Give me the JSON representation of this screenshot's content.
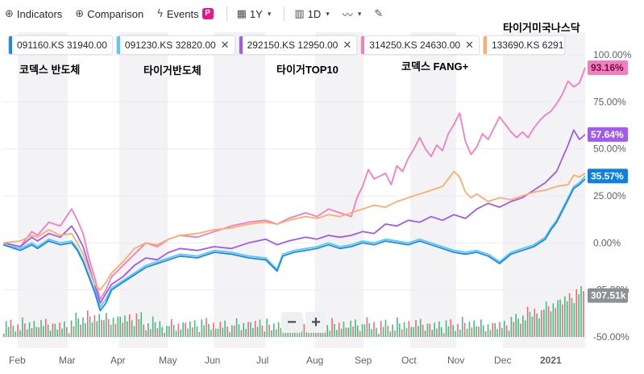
{
  "toolbar": {
    "indicators_label": "Indicators",
    "comparison_label": "Comparison",
    "events_label": "Events",
    "events_badge": "P",
    "range_label": "1Y",
    "interval_label": "1D"
  },
  "legend": [
    {
      "symbol_text": "091160.KS 31940.00",
      "color": "#1e88e5"
    },
    {
      "symbol_text": "091230.KS 32820.00",
      "color": "#5bc8f5"
    },
    {
      "symbol_text": "292150.KS 12950.00",
      "color": "#a259f0"
    },
    {
      "symbol_text": "314250.KS 24630.00",
      "color": "#f47cbf"
    },
    {
      "symbol_text": "133690.KS 6291",
      "color": "#f9ae6b"
    }
  ],
  "overlay_labels": [
    {
      "text": "코덱스 반도체"
    },
    {
      "text": "타이거반도체"
    },
    {
      "text": "타이거TOP10"
    },
    {
      "text": "코덱스 FANG+"
    },
    {
      "text": "타이거미국나스닥"
    }
  ],
  "chart_data": {
    "type": "line",
    "x_ticks": [
      "Feb",
      "Mar",
      "Apr",
      "May",
      "Jun",
      "Jul",
      "Aug",
      "Sep",
      "Oct",
      "Nov",
      "Dec",
      "2021"
    ],
    "y_ticks": [
      "100.00%",
      "75.00%",
      "50.00%",
      "25.00%",
      "0.00%",
      "-25.00%",
      "-50.00%"
    ],
    "ylim": [
      -50,
      100
    ],
    "y_unit": "%",
    "series": [
      {
        "name": "314250.KS",
        "color": "#f47cbf",
        "last_label": "93.16%",
        "values": [
          [
            0,
            0
          ],
          [
            3,
            -2
          ],
          [
            5,
            6
          ],
          [
            6,
            4
          ],
          [
            8,
            11
          ],
          [
            10,
            9
          ],
          [
            12,
            18
          ],
          [
            13,
            12
          ],
          [
            14,
            5
          ],
          [
            15,
            -8
          ],
          [
            16,
            -18
          ],
          [
            17,
            -30
          ],
          [
            18,
            -25
          ],
          [
            19,
            -18
          ],
          [
            21,
            -12
          ],
          [
            23,
            -6
          ],
          [
            25,
            0
          ],
          [
            27,
            -2
          ],
          [
            29,
            2
          ],
          [
            31,
            4
          ],
          [
            34,
            3
          ],
          [
            37,
            6
          ],
          [
            40,
            9
          ],
          [
            43,
            11
          ],
          [
            46,
            12
          ],
          [
            48,
            10
          ],
          [
            50,
            13
          ],
          [
            53,
            16
          ],
          [
            55,
            14
          ],
          [
            57,
            18
          ],
          [
            59,
            16
          ],
          [
            61,
            14
          ],
          [
            62,
            24
          ],
          [
            63,
            30
          ],
          [
            64,
            39
          ],
          [
            65,
            34
          ],
          [
            67,
            37
          ],
          [
            68,
            31
          ],
          [
            69,
            41
          ],
          [
            70,
            38
          ],
          [
            71,
            45
          ],
          [
            72,
            50
          ],
          [
            73,
            56
          ],
          [
            74,
            50
          ],
          [
            75,
            46
          ],
          [
            76,
            52
          ],
          [
            77,
            49
          ],
          [
            78,
            58
          ],
          [
            79,
            63
          ],
          [
            80,
            69
          ],
          [
            81,
            54
          ],
          [
            82,
            47
          ],
          [
            83,
            51
          ],
          [
            84,
            58
          ],
          [
            85,
            55
          ],
          [
            86,
            61
          ],
          [
            87,
            67
          ],
          [
            88,
            63
          ],
          [
            89,
            59
          ],
          [
            90,
            56
          ],
          [
            91,
            59
          ],
          [
            92,
            56
          ],
          [
            93,
            61
          ],
          [
            94,
            65
          ],
          [
            95,
            68
          ],
          [
            96,
            70
          ],
          [
            97,
            74
          ],
          [
            98,
            79
          ],
          [
            99,
            86
          ],
          [
            100,
            83
          ],
          [
            101,
            85
          ],
          [
            102,
            93.16
          ]
        ]
      },
      {
        "name": "292150.KS",
        "color": "#a259f0",
        "last_label": "57.64%",
        "values": [
          [
            0,
            0
          ],
          [
            3,
            -2
          ],
          [
            5,
            3
          ],
          [
            6,
            1
          ],
          [
            8,
            5
          ],
          [
            10,
            3
          ],
          [
            12,
            9
          ],
          [
            13,
            4
          ],
          [
            14,
            -2
          ],
          [
            15,
            -12
          ],
          [
            16,
            -22
          ],
          [
            17,
            -32
          ],
          [
            18,
            -27
          ],
          [
            19,
            -22
          ],
          [
            21,
            -18
          ],
          [
            23,
            -12
          ],
          [
            25,
            -8
          ],
          [
            27,
            -9
          ],
          [
            29,
            -5
          ],
          [
            31,
            -3
          ],
          [
            34,
            -4
          ],
          [
            37,
            -2
          ],
          [
            40,
            -3
          ],
          [
            43,
            0
          ],
          [
            46,
            2
          ],
          [
            48,
            -1
          ],
          [
            50,
            1
          ],
          [
            53,
            3
          ],
          [
            55,
            2
          ],
          [
            57,
            4
          ],
          [
            59,
            3
          ],
          [
            61,
            4
          ],
          [
            63,
            6
          ],
          [
            65,
            5
          ],
          [
            67,
            10
          ],
          [
            69,
            9
          ],
          [
            71,
            12
          ],
          [
            73,
            11
          ],
          [
            75,
            14
          ],
          [
            77,
            12
          ],
          [
            79,
            15
          ],
          [
            81,
            13
          ],
          [
            83,
            18
          ],
          [
            85,
            21
          ],
          [
            87,
            19
          ],
          [
            89,
            22
          ],
          [
            91,
            24
          ],
          [
            93,
            28
          ],
          [
            95,
            32
          ],
          [
            97,
            38
          ],
          [
            98,
            45
          ],
          [
            99,
            52
          ],
          [
            100,
            60
          ],
          [
            101,
            55
          ],
          [
            102,
            57.64
          ]
        ]
      },
      {
        "name": "133690.KS",
        "color": "#f9ae6b",
        "last_label": "",
        "values": [
          [
            0,
            0
          ],
          [
            3,
            1
          ],
          [
            5,
            4
          ],
          [
            6,
            3
          ],
          [
            8,
            7
          ],
          [
            10,
            4
          ],
          [
            12,
            5
          ],
          [
            13,
            0
          ],
          [
            14,
            -6
          ],
          [
            15,
            -14
          ],
          [
            16,
            -22
          ],
          [
            17,
            -25
          ],
          [
            18,
            -21
          ],
          [
            19,
            -16
          ],
          [
            21,
            -10
          ],
          [
            23,
            -3
          ],
          [
            25,
            0
          ],
          [
            27,
            -1
          ],
          [
            29,
            2
          ],
          [
            31,
            4
          ],
          [
            34,
            5
          ],
          [
            37,
            7
          ],
          [
            40,
            8
          ],
          [
            43,
            10
          ],
          [
            46,
            11
          ],
          [
            48,
            10
          ],
          [
            50,
            12
          ],
          [
            53,
            14
          ],
          [
            55,
            13
          ],
          [
            57,
            15
          ],
          [
            59,
            14
          ],
          [
            61,
            16
          ],
          [
            63,
            18
          ],
          [
            65,
            20
          ],
          [
            67,
            19
          ],
          [
            69,
            22
          ],
          [
            71,
            24
          ],
          [
            73,
            26
          ],
          [
            75,
            28
          ],
          [
            77,
            30
          ],
          [
            79,
            38
          ],
          [
            80,
            35
          ],
          [
            81,
            27
          ],
          [
            82,
            24
          ],
          [
            83,
            26
          ],
          [
            85,
            22
          ],
          [
            87,
            24
          ],
          [
            89,
            23
          ],
          [
            91,
            25
          ],
          [
            93,
            27
          ],
          [
            95,
            28
          ],
          [
            97,
            30
          ],
          [
            99,
            31
          ],
          [
            100,
            36
          ],
          [
            101,
            35
          ],
          [
            102,
            37
          ]
        ]
      },
      {
        "name": "091230.KS",
        "color": "#5bc8f5",
        "last_label": "35.57%",
        "values": [
          [
            0,
            -1
          ],
          [
            3,
            -3
          ],
          [
            5,
            0
          ],
          [
            6,
            -2
          ],
          [
            8,
            2
          ],
          [
            10,
            0
          ],
          [
            12,
            1
          ],
          [
            13,
            -3
          ],
          [
            14,
            -9
          ],
          [
            15,
            -17
          ],
          [
            16,
            -25
          ],
          [
            17,
            -34
          ],
          [
            18,
            -30
          ],
          [
            19,
            -24
          ],
          [
            21,
            -20
          ],
          [
            23,
            -16
          ],
          [
            25,
            -12
          ],
          [
            27,
            -10
          ],
          [
            29,
            -8
          ],
          [
            31,
            -6
          ],
          [
            34,
            -7
          ],
          [
            37,
            -4
          ],
          [
            40,
            -5
          ],
          [
            43,
            -7
          ],
          [
            46,
            -8
          ],
          [
            48,
            -14
          ],
          [
            49,
            -6
          ],
          [
            51,
            -4
          ],
          [
            53,
            -3
          ],
          [
            55,
            -2
          ],
          [
            57,
            0
          ],
          [
            59,
            -2
          ],
          [
            61,
            -1
          ],
          [
            63,
            1
          ],
          [
            65,
            0
          ],
          [
            67,
            2
          ],
          [
            69,
            1
          ],
          [
            71,
            0
          ],
          [
            73,
            2
          ],
          [
            75,
            0
          ],
          [
            77,
            -2
          ],
          [
            79,
            -4
          ],
          [
            81,
            -5
          ],
          [
            83,
            -4
          ],
          [
            85,
            -6
          ],
          [
            87,
            -10
          ],
          [
            89,
            -5
          ],
          [
            91,
            -3
          ],
          [
            93,
            -1
          ],
          [
            95,
            3
          ],
          [
            96,
            8
          ],
          [
            97,
            12
          ],
          [
            98,
            18
          ],
          [
            99,
            24
          ],
          [
            100,
            30
          ],
          [
            101,
            32
          ],
          [
            102,
            35.57
          ]
        ]
      },
      {
        "name": "091160.KS",
        "color": "#1e88e5",
        "last_label": "",
        "values": [
          [
            0,
            -1
          ],
          [
            3,
            -4
          ],
          [
            5,
            -1
          ],
          [
            6,
            -3
          ],
          [
            8,
            1
          ],
          [
            10,
            -1
          ],
          [
            12,
            0
          ],
          [
            13,
            -4
          ],
          [
            14,
            -10
          ],
          [
            15,
            -18
          ],
          [
            16,
            -26
          ],
          [
            17,
            -36
          ],
          [
            18,
            -32
          ],
          [
            19,
            -25
          ],
          [
            21,
            -21
          ],
          [
            23,
            -17
          ],
          [
            25,
            -13
          ],
          [
            27,
            -11
          ],
          [
            29,
            -9
          ],
          [
            31,
            -7
          ],
          [
            34,
            -8
          ],
          [
            37,
            -5
          ],
          [
            40,
            -6
          ],
          [
            43,
            -8
          ],
          [
            46,
            -9
          ],
          [
            48,
            -15
          ],
          [
            49,
            -7
          ],
          [
            51,
            -5
          ],
          [
            53,
            -4
          ],
          [
            55,
            -3
          ],
          [
            57,
            -1
          ],
          [
            59,
            -3
          ],
          [
            61,
            -2
          ],
          [
            63,
            0
          ],
          [
            65,
            -1
          ],
          [
            67,
            1
          ],
          [
            69,
            0
          ],
          [
            71,
            -1
          ],
          [
            73,
            1
          ],
          [
            75,
            -1
          ],
          [
            77,
            -3
          ],
          [
            79,
            -5
          ],
          [
            81,
            -6
          ],
          [
            83,
            -5
          ],
          [
            85,
            -7
          ],
          [
            87,
            -11
          ],
          [
            89,
            -6
          ],
          [
            91,
            -4
          ],
          [
            93,
            -2
          ],
          [
            95,
            2
          ],
          [
            96,
            7
          ],
          [
            97,
            11
          ],
          [
            98,
            17
          ],
          [
            99,
            23
          ],
          [
            100,
            29
          ],
          [
            101,
            31
          ],
          [
            102,
            34
          ]
        ]
      }
    ],
    "volume_label": "307.51k"
  },
  "colors": {
    "band": "#f3f3f5",
    "grid": "#e9ebee",
    "axis_text": "#5b636a",
    "volume_up": "#23b26d",
    "volume_down": "#f04f5e",
    "volume_label_bg": "#8c9196",
    "last_badge_bg": "#0b81e4"
  }
}
